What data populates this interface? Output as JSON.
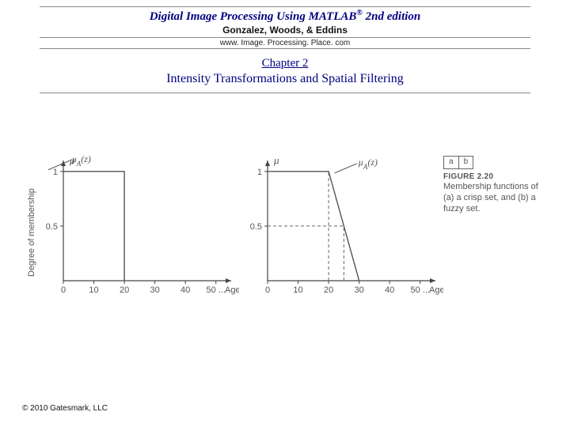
{
  "header": {
    "book_title_part1": "Digital Image Processing Using MATLAB",
    "book_title_sup": "®",
    "book_title_part2": " 2nd edition",
    "authors": "Gonzalez, Woods, & Eddins",
    "url": "www. Image. Processing. Place. com"
  },
  "chapter": {
    "number": "Chapter 2",
    "title": "Intensity Transformations and Spatial Filtering"
  },
  "figure": {
    "ylabel": "Degree of membership",
    "y_axis_symbol": "μ",
    "x_axis_label": "Age (z)",
    "label_a": "a",
    "label_b": "b",
    "fig_num": "FIGURE 2.20",
    "caption": "Membership functions of (a) a crisp set, and (b) a fuzzy set.",
    "func_label_a": "μ_A(z)",
    "func_label_b": "μ_A(z)",
    "chart_a": {
      "type": "line",
      "xlim": [
        0,
        55
      ],
      "ylim": [
        0,
        1.1
      ],
      "xticks": [
        0,
        10,
        20,
        30,
        40,
        50
      ],
      "xtick_labels": [
        "0",
        "10",
        "20",
        "30",
        "40",
        "50  ..."
      ],
      "yticks": [
        0.5,
        1
      ],
      "ytick_labels": [
        "0.5",
        "1"
      ],
      "line_points": [
        [
          0,
          1
        ],
        [
          20,
          1
        ],
        [
          20,
          0
        ]
      ],
      "axis_color": "#444444",
      "line_color": "#555555",
      "line_width": 1.4,
      "background": "#f7f7f5",
      "font_size": 11,
      "text_color": "#555555"
    },
    "chart_b": {
      "type": "line",
      "xlim": [
        0,
        55
      ],
      "ylim": [
        0,
        1.1
      ],
      "xticks": [
        0,
        10,
        20,
        30,
        40,
        50
      ],
      "xtick_labels": [
        "0",
        "10",
        "20",
        "30",
        "40",
        "50  ..."
      ],
      "yticks": [
        0.5,
        1
      ],
      "ytick_labels": [
        "0.5",
        "1"
      ],
      "line_points": [
        [
          0,
          1
        ],
        [
          20,
          1
        ],
        [
          30,
          0
        ]
      ],
      "dashed_h": {
        "y": 0.5,
        "x_to": 25
      },
      "dashed_v": {
        "x": 25,
        "y_to": 0.5
      },
      "dashed_v2": {
        "x": 20,
        "y_to": 1
      },
      "axis_color": "#444444",
      "line_color": "#555555",
      "line_width": 1.4,
      "dash_color": "#666666",
      "background": "#f7f7f5",
      "font_size": 11,
      "text_color": "#555555"
    }
  },
  "copyright": "© 2010 Gatesmark, LLC"
}
